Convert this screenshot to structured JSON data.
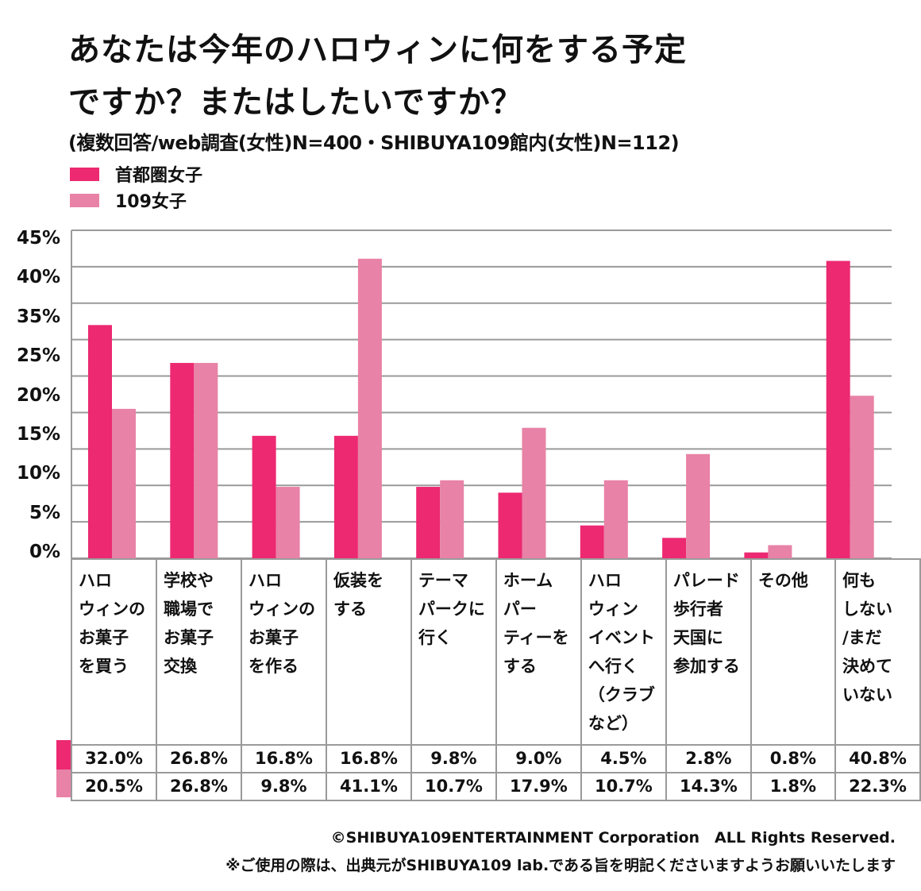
{
  "title_line1": "あなたは今年のハロウィンに何をする予定",
  "title_line2": "ですか？またはしたいですか？",
  "subtitle": "(複数回答/web調査(女性)N=400・SHIBUYA109館内(女性)N=112)",
  "colors": {
    "series1": "#EC2971",
    "series2": "#E882A6",
    "grid": "#9a9a9a"
  },
  "footer": {
    "copyright": "©SHIBUYA109ENTERTAINMENT Corporation　ALL Rights Reserved.",
    "notice": "※ご使用の際は、出典元がSHIBUYA109 lab.である旨を明記くださいますようお願いいたします"
  },
  "chart_data": {
    "type": "bar",
    "title": "あなたは今年のハロウィンに何をする予定ですか？またはしたいですか？",
    "subtitle": "(複数回答/web調査(女性)N=400・SHIBUYA109館内(女性)N=112)",
    "xlabel": "",
    "ylabel": "",
    "ylim": [
      0,
      45
    ],
    "y_tick_labels": [
      "45%",
      "40%",
      "35%",
      "25%",
      "20%",
      "15%",
      "10%",
      "5%",
      "0%"
    ],
    "gridline_step": 5,
    "grid": true,
    "legend_position": "top-left",
    "categories": [
      [
        "ハロ",
        "ウィンの",
        "お菓子",
        "を買う"
      ],
      [
        "学校や",
        "職場で",
        "お菓子",
        "交換"
      ],
      [
        "ハロ",
        "ウィンの",
        "お菓子",
        "を作る"
      ],
      [
        "仮装を",
        "する"
      ],
      [
        "テーマ",
        "パークに",
        "行く"
      ],
      [
        "ホーム",
        "パー",
        "ティーを",
        "する"
      ],
      [
        "ハロ",
        "ウィン",
        "イベント",
        "へ行く",
        "（クラブ",
        "など）"
      ],
      [
        "パレード",
        "歩行者",
        "天国に",
        "参加する"
      ],
      [
        "その他"
      ],
      [
        "何も",
        "しない",
        "/まだ",
        "決めて",
        "いない"
      ]
    ],
    "series": [
      {
        "name": "首都圏女子",
        "values": [
          32.0,
          26.8,
          16.8,
          16.8,
          9.8,
          9.0,
          4.5,
          2.8,
          0.8,
          40.8
        ],
        "labels": [
          "32.0%",
          "26.8%",
          "16.8%",
          "16.8%",
          "9.8%",
          "9.0%",
          "4.5%",
          "2.8%",
          "0.8%",
          "40.8%"
        ]
      },
      {
        "name": "109女子",
        "values": [
          20.5,
          26.8,
          9.8,
          41.1,
          10.7,
          17.9,
          10.7,
          14.3,
          1.8,
          22.3
        ],
        "labels": [
          "20.5%",
          "26.8%",
          "9.8%",
          "41.1%",
          "10.7%",
          "17.9%",
          "10.7%",
          "14.3%",
          "1.8%",
          "22.3%"
        ]
      }
    ]
  }
}
